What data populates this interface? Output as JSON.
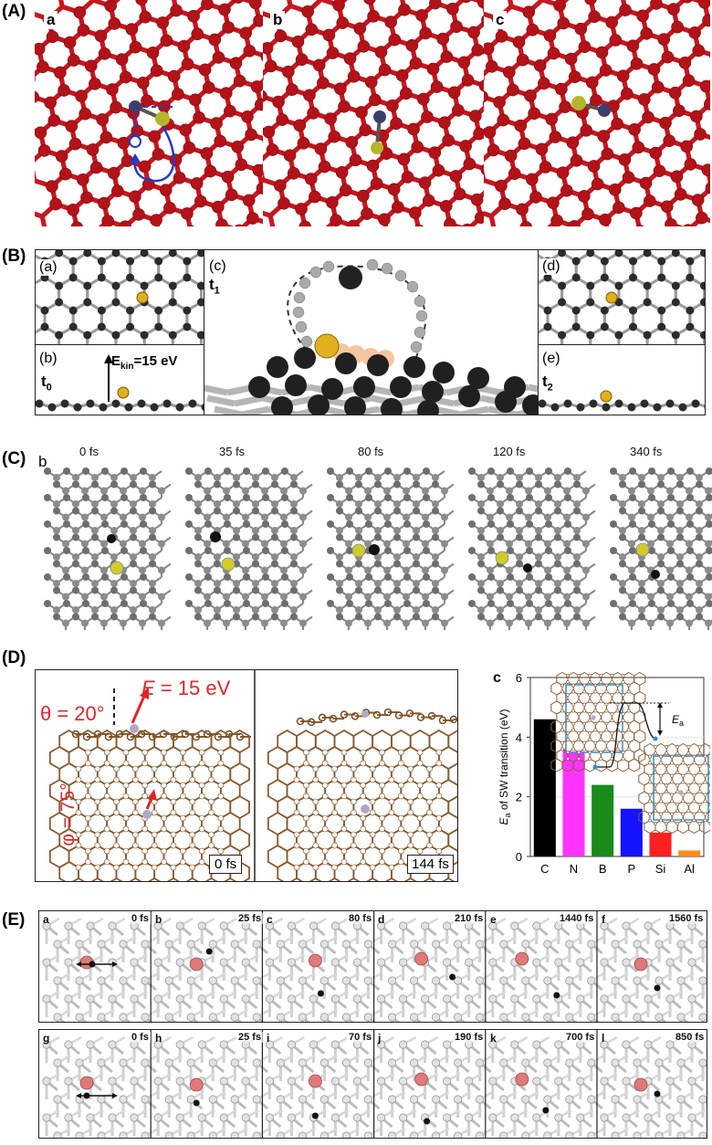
{
  "sections": {
    "A": {
      "label": "(A)",
      "panels": [
        "a",
        "b",
        "c"
      ]
    },
    "B": {
      "label": "(B)",
      "panel_a": "(a)",
      "panel_b": "(b)",
      "panel_c": "(c)",
      "panel_d": "(d)",
      "panel_e": "(e)",
      "t0": "t",
      "t0_sub": "0",
      "t1": "t",
      "t1_sub": "1",
      "t2": "t",
      "t2_sub": "2",
      "ekin_prefix": "E",
      "ekin_sub": "kin",
      "ekin_value": "=15 eV"
    },
    "C": {
      "label": "(C)",
      "panel": "b",
      "times": [
        "0 fs",
        "35 fs",
        "80 fs",
        "120 fs",
        "340 fs"
      ]
    },
    "D": {
      "label": "(D)",
      "theta": "θ = 20°",
      "energy_e": "E",
      "energy_rest": " = 15 eV",
      "phi": "φ = 75°",
      "time_left": "0 fs",
      "time_right": "144 fs"
    },
    "E": {
      "label": "(E)",
      "row1": [
        {
          "letter": "a",
          "time": "0 fs"
        },
        {
          "letter": "b",
          "time": "25 fs"
        },
        {
          "letter": "c",
          "time": "80 fs"
        },
        {
          "letter": "d",
          "time": "210 fs"
        },
        {
          "letter": "e",
          "time": "1440 fs"
        },
        {
          "letter": "f",
          "time": "1560 fs"
        }
      ],
      "row2": [
        {
          "letter": "g",
          "time": "0 fs"
        },
        {
          "letter": "h",
          "time": "25 fs"
        },
        {
          "letter": "i",
          "time": "70 fs"
        },
        {
          "letter": "j",
          "time": "190 fs"
        },
        {
          "letter": "k",
          "time": "700 fs"
        },
        {
          "letter": "l",
          "time": "850 fs"
        }
      ]
    }
  },
  "chart_data": {
    "type": "bar",
    "panel_label": "c",
    "categories": [
      "C",
      "N",
      "B",
      "P",
      "Si",
      "Al"
    ],
    "values": [
      4.6,
      3.6,
      2.4,
      1.6,
      0.8,
      0.2
    ],
    "colors": [
      "#000000",
      "#ff33ff",
      "#1a8a1a",
      "#1414ff",
      "#ff2020",
      "#ff8c1a"
    ],
    "ylabel_main": "E",
    "ylabel_sub": "a",
    "ylabel_rest": " of SW transition (eV)",
    "yticks": [
      "0",
      "2",
      "4",
      "6"
    ],
    "ylim": [
      0,
      6
    ],
    "inset_label_main": "E",
    "inset_label_sub": "a"
  },
  "colors": {
    "graphene_red": "#c0141c",
    "dopant_yellow": "#b5b62a",
    "dopant_navy": "#3a3f6e",
    "carbon_dark": "#333333",
    "gold": "#e0b020",
    "brown": "#8a5a2e",
    "accent_red": "#e0262b",
    "frame_blue": "#2a8fd6"
  }
}
